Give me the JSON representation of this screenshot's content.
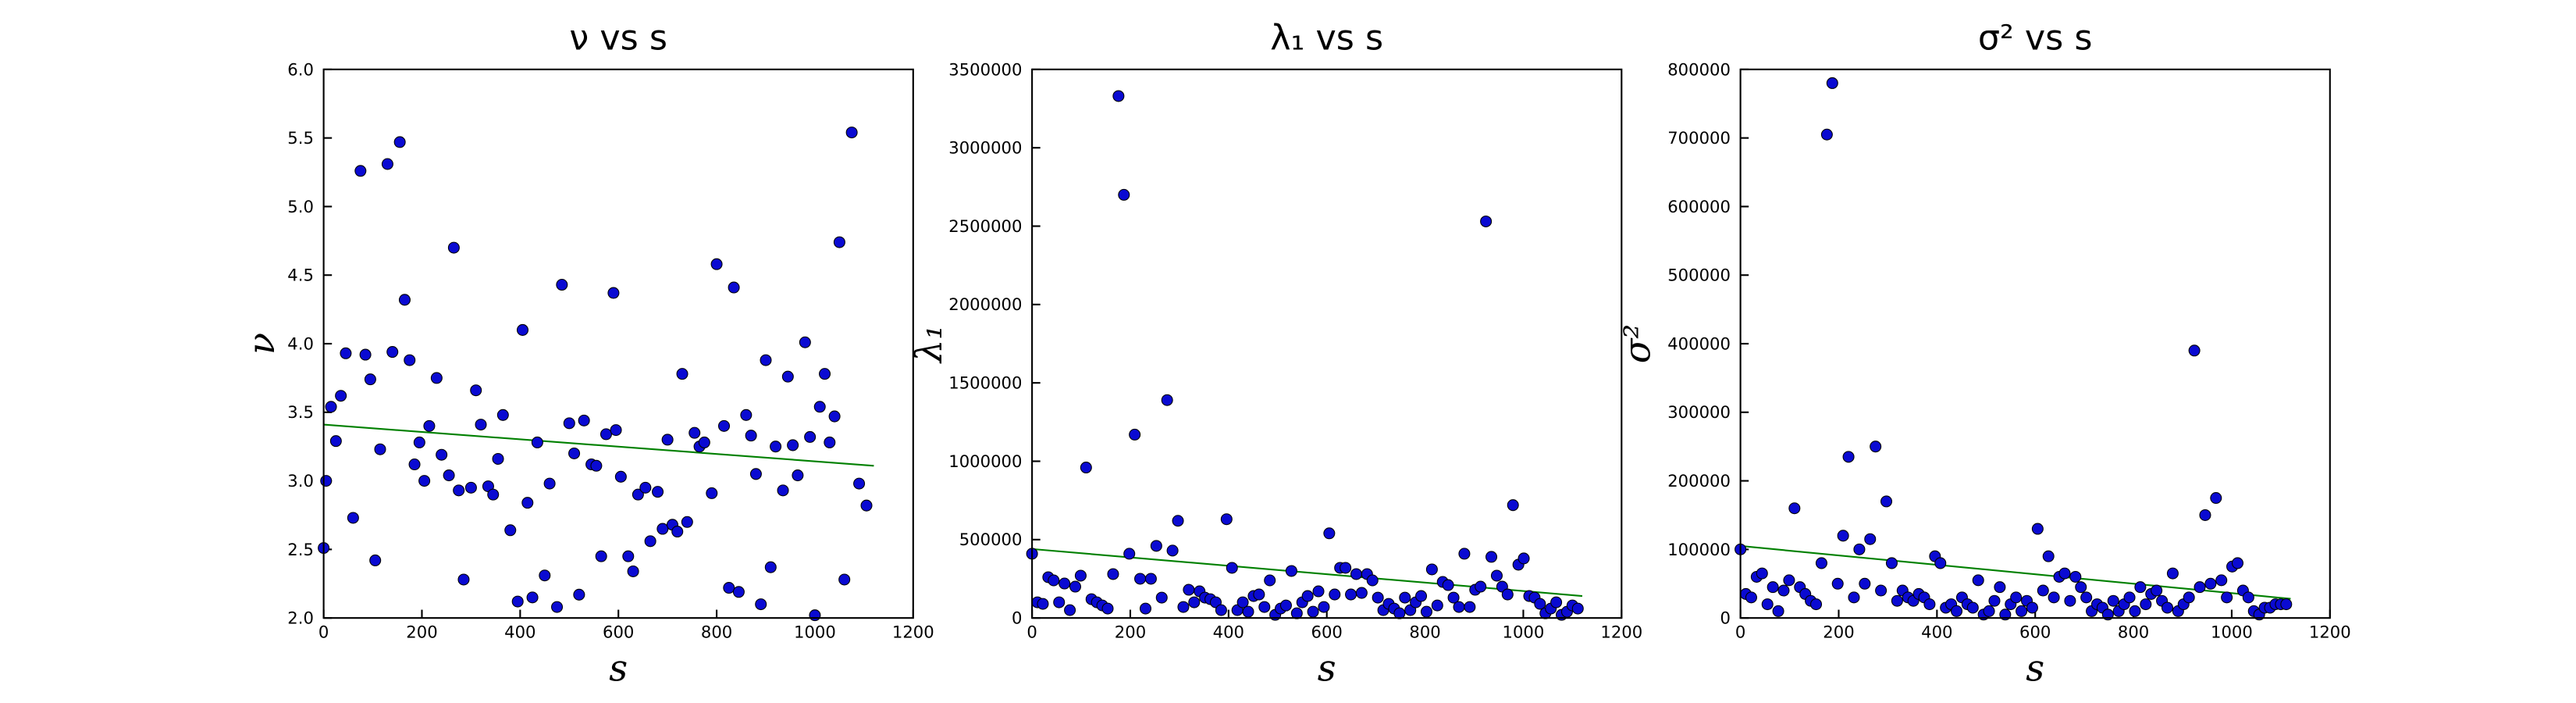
{
  "chart_data": [
    {
      "type": "scatter",
      "title": "ν vs s",
      "xlabel": "s",
      "ylabel": "ν",
      "color": "#0a0ad2",
      "x": [
        0,
        5,
        15,
        25,
        35,
        45,
        60,
        75,
        85,
        95,
        105,
        115,
        130,
        140,
        155,
        165,
        175,
        185,
        195,
        205,
        215,
        230,
        240,
        255,
        265,
        275,
        285,
        300,
        310,
        320,
        335,
        345,
        355,
        365,
        380,
        395,
        405,
        415,
        425,
        435,
        450,
        460,
        475,
        485,
        500,
        510,
        520,
        530,
        545,
        555,
        565,
        575,
        590,
        595,
        605,
        620,
        630,
        640,
        655,
        665,
        680,
        690,
        700,
        710,
        720,
        730,
        740,
        755,
        765,
        775,
        790,
        800,
        815,
        825,
        835,
        845,
        860,
        870,
        880,
        890,
        900,
        910,
        920,
        935,
        945,
        955,
        965,
        980,
        990,
        1000,
        1010,
        1020,
        1030,
        1040,
        1050,
        1060,
        1075,
        1090,
        1105
      ],
      "y": [
        2.51,
        3.0,
        3.54,
        3.29,
        3.62,
        3.93,
        2.73,
        5.26,
        3.92,
        3.74,
        2.42,
        3.23,
        5.31,
        3.94,
        5.47,
        4.32,
        3.88,
        3.12,
        3.28,
        3.0,
        3.4,
        3.75,
        3.19,
        3.04,
        4.7,
        2.93,
        2.28,
        2.95,
        3.66,
        3.41,
        2.96,
        2.9,
        3.16,
        3.48,
        2.64,
        2.12,
        4.1,
        2.84,
        2.15,
        3.28,
        2.31,
        2.98,
        2.08,
        4.43,
        3.42,
        3.2,
        2.17,
        3.44,
        3.12,
        3.11,
        2.45,
        3.34,
        4.37,
        3.37,
        3.03,
        2.45,
        2.34,
        2.9,
        2.95,
        2.56,
        2.92,
        2.65,
        3.3,
        2.68,
        2.63,
        3.78,
        2.7,
        3.35,
        3.25,
        3.28,
        2.91,
        4.58,
        3.4,
        2.22,
        4.41,
        2.19,
        3.48,
        3.33,
        3.05,
        2.1,
        3.88,
        2.37,
        3.25,
        2.93,
        3.76,
        3.26,
        3.04,
        4.01,
        3.32,
        2.02,
        3.54,
        3.78,
        3.28,
        3.47,
        4.74,
        2.28,
        5.54,
        2.98,
        2.82
      ],
      "fit": {
        "x": [
          0,
          1120
        ],
        "y": [
          3.41,
          3.11
        ],
        "color": "#008000"
      },
      "xlim": [
        0,
        1200
      ],
      "xticks": [
        0,
        200,
        400,
        600,
        800,
        1000,
        1200
      ],
      "ylim": [
        2,
        6
      ],
      "yticks": [
        {
          "value": 2,
          "label": "2.0"
        },
        2.5,
        {
          "value": 3,
          "label": "3.0"
        },
        3.5,
        {
          "value": 4,
          "label": "4.0"
        },
        4.5,
        {
          "value": 5,
          "label": "5.0"
        },
        5.5,
        {
          "value": 6,
          "label": "6.0"
        }
      ]
    },
    {
      "type": "scatter",
      "title": "λ₁ vs s",
      "xlabel": "s",
      "ylabel": "λ₁",
      "color": "#0a0ad2",
      "x": [
        0,
        11,
        22,
        33,
        44,
        55,
        66,
        77,
        88,
        99,
        110,
        121,
        132,
        143,
        154,
        165,
        176,
        187,
        198,
        209,
        220,
        231,
        242,
        253,
        264,
        275,
        286,
        297,
        308,
        319,
        330,
        341,
        352,
        363,
        374,
        385,
        396,
        407,
        418,
        429,
        440,
        451,
        462,
        473,
        484,
        495,
        506,
        517,
        528,
        539,
        550,
        561,
        572,
        583,
        594,
        605,
        616,
        627,
        638,
        649,
        660,
        671,
        682,
        693,
        704,
        715,
        726,
        737,
        748,
        759,
        770,
        781,
        792,
        803,
        814,
        825,
        836,
        847,
        858,
        869,
        880,
        891,
        902,
        913,
        924,
        935,
        946,
        957,
        968,
        979,
        990,
        1001,
        1012,
        1023,
        1034,
        1045,
        1056,
        1067,
        1078,
        1089,
        1100,
        1111
      ],
      "y": [
        410000,
        100000,
        90000,
        260000,
        240000,
        100000,
        220000,
        50000,
        200000,
        270000,
        960000,
        120000,
        100000,
        80000,
        60000,
        280000,
        3330000,
        2700000,
        410000,
        1170000,
        250000,
        60000,
        250000,
        460000,
        130000,
        1390000,
        430000,
        620000,
        70000,
        180000,
        100000,
        170000,
        130000,
        120000,
        100000,
        50000,
        630000,
        320000,
        50000,
        100000,
        40000,
        140000,
        150000,
        70000,
        240000,
        20000,
        60000,
        80000,
        300000,
        30000,
        100000,
        140000,
        40000,
        170000,
        70000,
        540000,
        150000,
        320000,
        320000,
        150000,
        280000,
        160000,
        280000,
        240000,
        130000,
        50000,
        90000,
        60000,
        30000,
        130000,
        50000,
        100000,
        140000,
        40000,
        310000,
        80000,
        230000,
        210000,
        130000,
        70000,
        410000,
        70000,
        180000,
        200000,
        2530000,
        390000,
        270000,
        200000,
        150000,
        720000,
        340000,
        380000,
        140000,
        130000,
        90000,
        30000,
        60000,
        100000,
        20000,
        40000,
        80000,
        60000
      ],
      "fit": {
        "x": [
          0,
          1120
        ],
        "y": [
          440000,
          140000
        ],
        "color": "#008000"
      },
      "xlim": [
        0,
        1200
      ],
      "xticks": [
        0,
        200,
        400,
        600,
        800,
        1000,
        1200
      ],
      "ylim": [
        0,
        3500000
      ],
      "yticks": [
        0,
        500000,
        1000000,
        1500000,
        2000000,
        2500000,
        3000000,
        3500000
      ]
    },
    {
      "type": "scatter",
      "title": "σ² vs s",
      "xlabel": "s",
      "ylabel": "σ²",
      "color": "#0a0ad2",
      "x": [
        0,
        11,
        22,
        33,
        44,
        55,
        66,
        77,
        88,
        99,
        110,
        121,
        132,
        143,
        154,
        165,
        176,
        187,
        198,
        209,
        220,
        231,
        242,
        253,
        264,
        275,
        286,
        297,
        308,
        319,
        330,
        341,
        352,
        363,
        374,
        385,
        396,
        407,
        418,
        429,
        440,
        451,
        462,
        473,
        484,
        495,
        506,
        517,
        528,
        539,
        550,
        561,
        572,
        583,
        594,
        605,
        616,
        627,
        638,
        649,
        660,
        671,
        682,
        693,
        704,
        715,
        726,
        737,
        748,
        759,
        770,
        781,
        792,
        803,
        814,
        825,
        836,
        847,
        858,
        869,
        880,
        891,
        902,
        913,
        924,
        935,
        946,
        957,
        968,
        979,
        990,
        1001,
        1012,
        1023,
        1034,
        1045,
        1056,
        1067,
        1078,
        1089,
        1100,
        1111
      ],
      "y": [
        100000,
        35000,
        30000,
        60000,
        65000,
        20000,
        45000,
        10000,
        40000,
        55000,
        160000,
        45000,
        35000,
        25000,
        20000,
        80000,
        705000,
        780000,
        50000,
        120000,
        235000,
        30000,
        100000,
        50000,
        115000,
        250000,
        40000,
        170000,
        80000,
        25000,
        40000,
        30000,
        25000,
        35000,
        30000,
        20000,
        90000,
        80000,
        15000,
        20000,
        10000,
        30000,
        20000,
        15000,
        55000,
        5000,
        10000,
        25000,
        45000,
        5000,
        20000,
        30000,
        10000,
        25000,
        15000,
        130000,
        40000,
        90000,
        30000,
        60000,
        65000,
        25000,
        60000,
        45000,
        30000,
        10000,
        20000,
        15000,
        5000,
        25000,
        10000,
        20000,
        30000,
        10000,
        45000,
        20000,
        35000,
        40000,
        25000,
        15000,
        65000,
        10000,
        20000,
        30000,
        390000,
        45000,
        150000,
        50000,
        175000,
        55000,
        30000,
        75000,
        80000,
        40000,
        30000,
        10000,
        5000,
        15000,
        15000,
        20000,
        20000,
        20000
      ],
      "fit": {
        "x": [
          0,
          1120
        ],
        "y": [
          105000,
          28000
        ],
        "color": "#008000"
      },
      "xlim": [
        0,
        1200
      ],
      "xticks": [
        0,
        200,
        400,
        600,
        800,
        1000,
        1200
      ],
      "ylim": [
        0,
        800000
      ],
      "yticks": [
        0,
        100000,
        200000,
        300000,
        400000,
        500000,
        600000,
        700000,
        800000
      ]
    }
  ]
}
